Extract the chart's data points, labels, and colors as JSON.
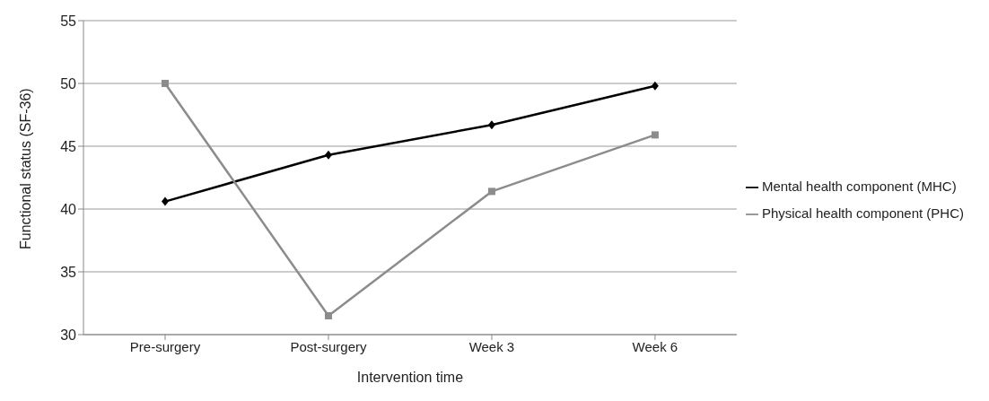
{
  "chart_data": {
    "type": "line",
    "xlabel": "Intervention time",
    "ylabel": "Functional status (SF-36)",
    "categories": [
      "Pre-surgery",
      "Post-surgery",
      "Week 3",
      "Week 6"
    ],
    "series": [
      {
        "name": "Mental health component (MHC)",
        "color": "#000000",
        "marker": "diamond",
        "values": [
          40.6,
          44.3,
          46.7,
          49.8
        ]
      },
      {
        "name": "Physical health component (PHC)",
        "color": "#8c8c8c",
        "marker": "square",
        "values": [
          50.0,
          31.5,
          41.4,
          45.9
        ]
      }
    ],
    "ylim": [
      30,
      55
    ],
    "yticks": [
      30,
      35,
      40,
      45,
      50,
      55
    ],
    "grid": "y",
    "legend": "right",
    "line_style": "solid"
  }
}
